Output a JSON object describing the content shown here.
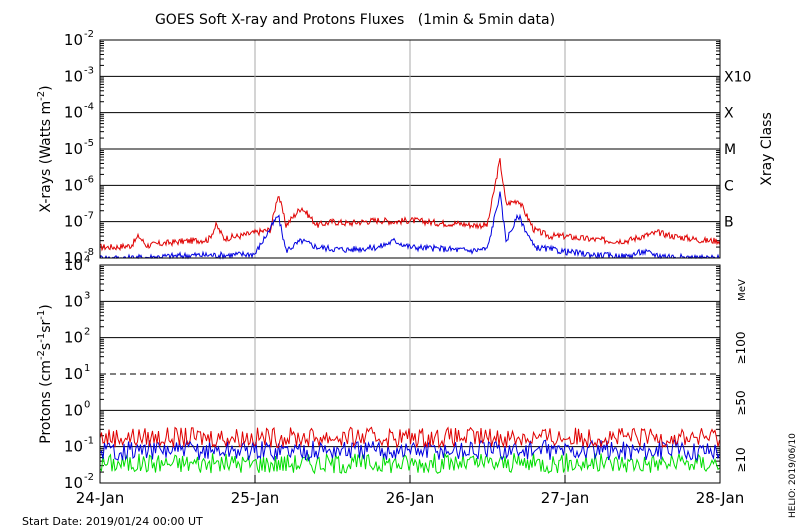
{
  "chart_data": [
    {
      "type": "line",
      "title": "GOES Soft X-ray and Protons Fluxes   (1min & 5min data)",
      "ylabel": "X-rays (Watts m-2)",
      "ylabel_parts": {
        "base": "X-rays (Watts m",
        "sup": "-2",
        "close": ")"
      },
      "yscale": "log",
      "ylim": [
        1e-08,
        0.01
      ],
      "y_ticks": [
        {
          "exp": -2,
          "label": "10",
          "sup": "-2"
        },
        {
          "exp": -3,
          "label": "10",
          "sup": "-3"
        },
        {
          "exp": -4,
          "label": "10",
          "sup": "-4"
        },
        {
          "exp": -5,
          "label": "10",
          "sup": "-5"
        },
        {
          "exp": -6,
          "label": "10",
          "sup": "-6"
        },
        {
          "exp": -7,
          "label": "10",
          "sup": "-7"
        },
        {
          "exp": -8,
          "label": "10",
          "sup": "-8"
        }
      ],
      "right_axis_label": "Xray Class",
      "xray_classes": [
        {
          "label": "X10",
          "exp": -3
        },
        {
          "label": "X",
          "exp": -4
        },
        {
          "label": "M",
          "exp": -5
        },
        {
          "label": "C",
          "exp": -6
        },
        {
          "label": "B",
          "exp": -7
        }
      ],
      "x_range_days": [
        0,
        4
      ],
      "grid": true,
      "series": [
        {
          "color": "#e00000",
          "x": [
            0.0,
            0.1,
            0.2,
            0.25,
            0.3,
            0.4,
            0.5,
            0.6,
            0.7,
            0.75,
            0.8,
            0.9,
            1.0,
            1.1,
            1.15,
            1.2,
            1.3,
            1.4,
            1.5,
            1.6,
            1.7,
            1.8,
            1.9,
            2.0,
            2.1,
            2.2,
            2.3,
            2.4,
            2.5,
            2.58,
            2.62,
            2.7,
            2.8,
            2.9,
            3.0,
            3.1,
            3.2,
            3.3,
            3.4,
            3.5,
            3.6,
            3.7,
            3.8,
            3.9,
            4.0
          ],
          "y": [
            2e-08,
            2e-08,
            2.2e-08,
            4e-08,
            2.2e-08,
            2.5e-08,
            2.8e-08,
            3e-08,
            3.2e-08,
            8e-08,
            3.5e-08,
            4e-08,
            5e-08,
            6e-08,
            6e-07,
            8e-08,
            2.5e-07,
            8e-08,
            1e-07,
            9e-08,
            1e-07,
            1.1e-07,
            1e-07,
            1.1e-07,
            1e-07,
            9e-08,
            9e-08,
            8e-08,
            8e-08,
            5e-06,
            3e-07,
            4e-07,
            6e-08,
            4e-08,
            4e-08,
            3.5e-08,
            3.2e-08,
            3e-08,
            3e-08,
            4e-08,
            5e-08,
            4e-08,
            3.5e-08,
            3e-08,
            3e-08
          ]
        },
        {
          "color": "#0000e0",
          "x": [
            0.0,
            0.2,
            0.4,
            0.6,
            0.8,
            1.0,
            1.15,
            1.2,
            1.3,
            1.4,
            1.5,
            1.6,
            1.8,
            1.9,
            2.0,
            2.2,
            2.4,
            2.5,
            2.58,
            2.62,
            2.7,
            2.8,
            3.0,
            3.2,
            3.4,
            3.5,
            3.6,
            3.8,
            4.0
          ],
          "y": [
            1e-08,
            1e-08,
            1.1e-08,
            1.2e-08,
            1.2e-08,
            1.3e-08,
            1.5e-07,
            1.6e-08,
            3e-08,
            2e-08,
            1.8e-08,
            1.7e-08,
            2e-08,
            3e-08,
            2e-08,
            1.8e-08,
            1.6e-08,
            1.8e-08,
            6e-07,
            3e-08,
            1.5e-07,
            2e-08,
            1.5e-08,
            1.2e-08,
            1.1e-08,
            1.5e-08,
            1.2e-08,
            1e-08,
            1e-08
          ]
        }
      ]
    },
    {
      "type": "line",
      "ylabel": "Protons (cm-2s-1sr-1)",
      "ylabel_parts": {
        "base": "Protons (cm",
        "sup1": "-2",
        "mid1": "s",
        "sup2": "-1",
        "mid2": "sr",
        "sup3": "-1",
        "close": ")"
      },
      "yscale": "log",
      "ylim": [
        0.01,
        10000
      ],
      "y_ticks": [
        {
          "exp": 4,
          "label": "10",
          "sup": "4"
        },
        {
          "exp": 3,
          "label": "10",
          "sup": "3"
        },
        {
          "exp": 2,
          "label": "10",
          "sup": "2"
        },
        {
          "exp": 1,
          "label": "10",
          "sup": "1"
        },
        {
          "exp": 0,
          "label": "10",
          "sup": "0"
        },
        {
          "exp": -1,
          "label": "10",
          "sup": "-1"
        },
        {
          "exp": -2,
          "label": "10",
          "sup": "-2"
        }
      ],
      "reference_line": 10,
      "units_label": "MeV",
      "series": [
        {
          "name": "≥100",
          "color": "#00dd00",
          "mean": 0.035
        },
        {
          "name": "≥50",
          "color": "#0000e0",
          "mean": 0.08
        },
        {
          "name": "≥10",
          "color": "#e00000",
          "mean": 0.18
        }
      ]
    }
  ],
  "x_axis": {
    "ticks": [
      {
        "label": "24-Jan",
        "day": 0
      },
      {
        "label": "25-Jan",
        "day": 1
      },
      {
        "label": "26-Jan",
        "day": 2
      },
      {
        "label": "27-Jan",
        "day": 3
      },
      {
        "label": "28-Jan",
        "day": 4
      }
    ]
  },
  "footer": {
    "start_date": "Start Date: 2019/01/24 00:00 UT",
    "credit": "HELIO: 2019/06/10"
  }
}
